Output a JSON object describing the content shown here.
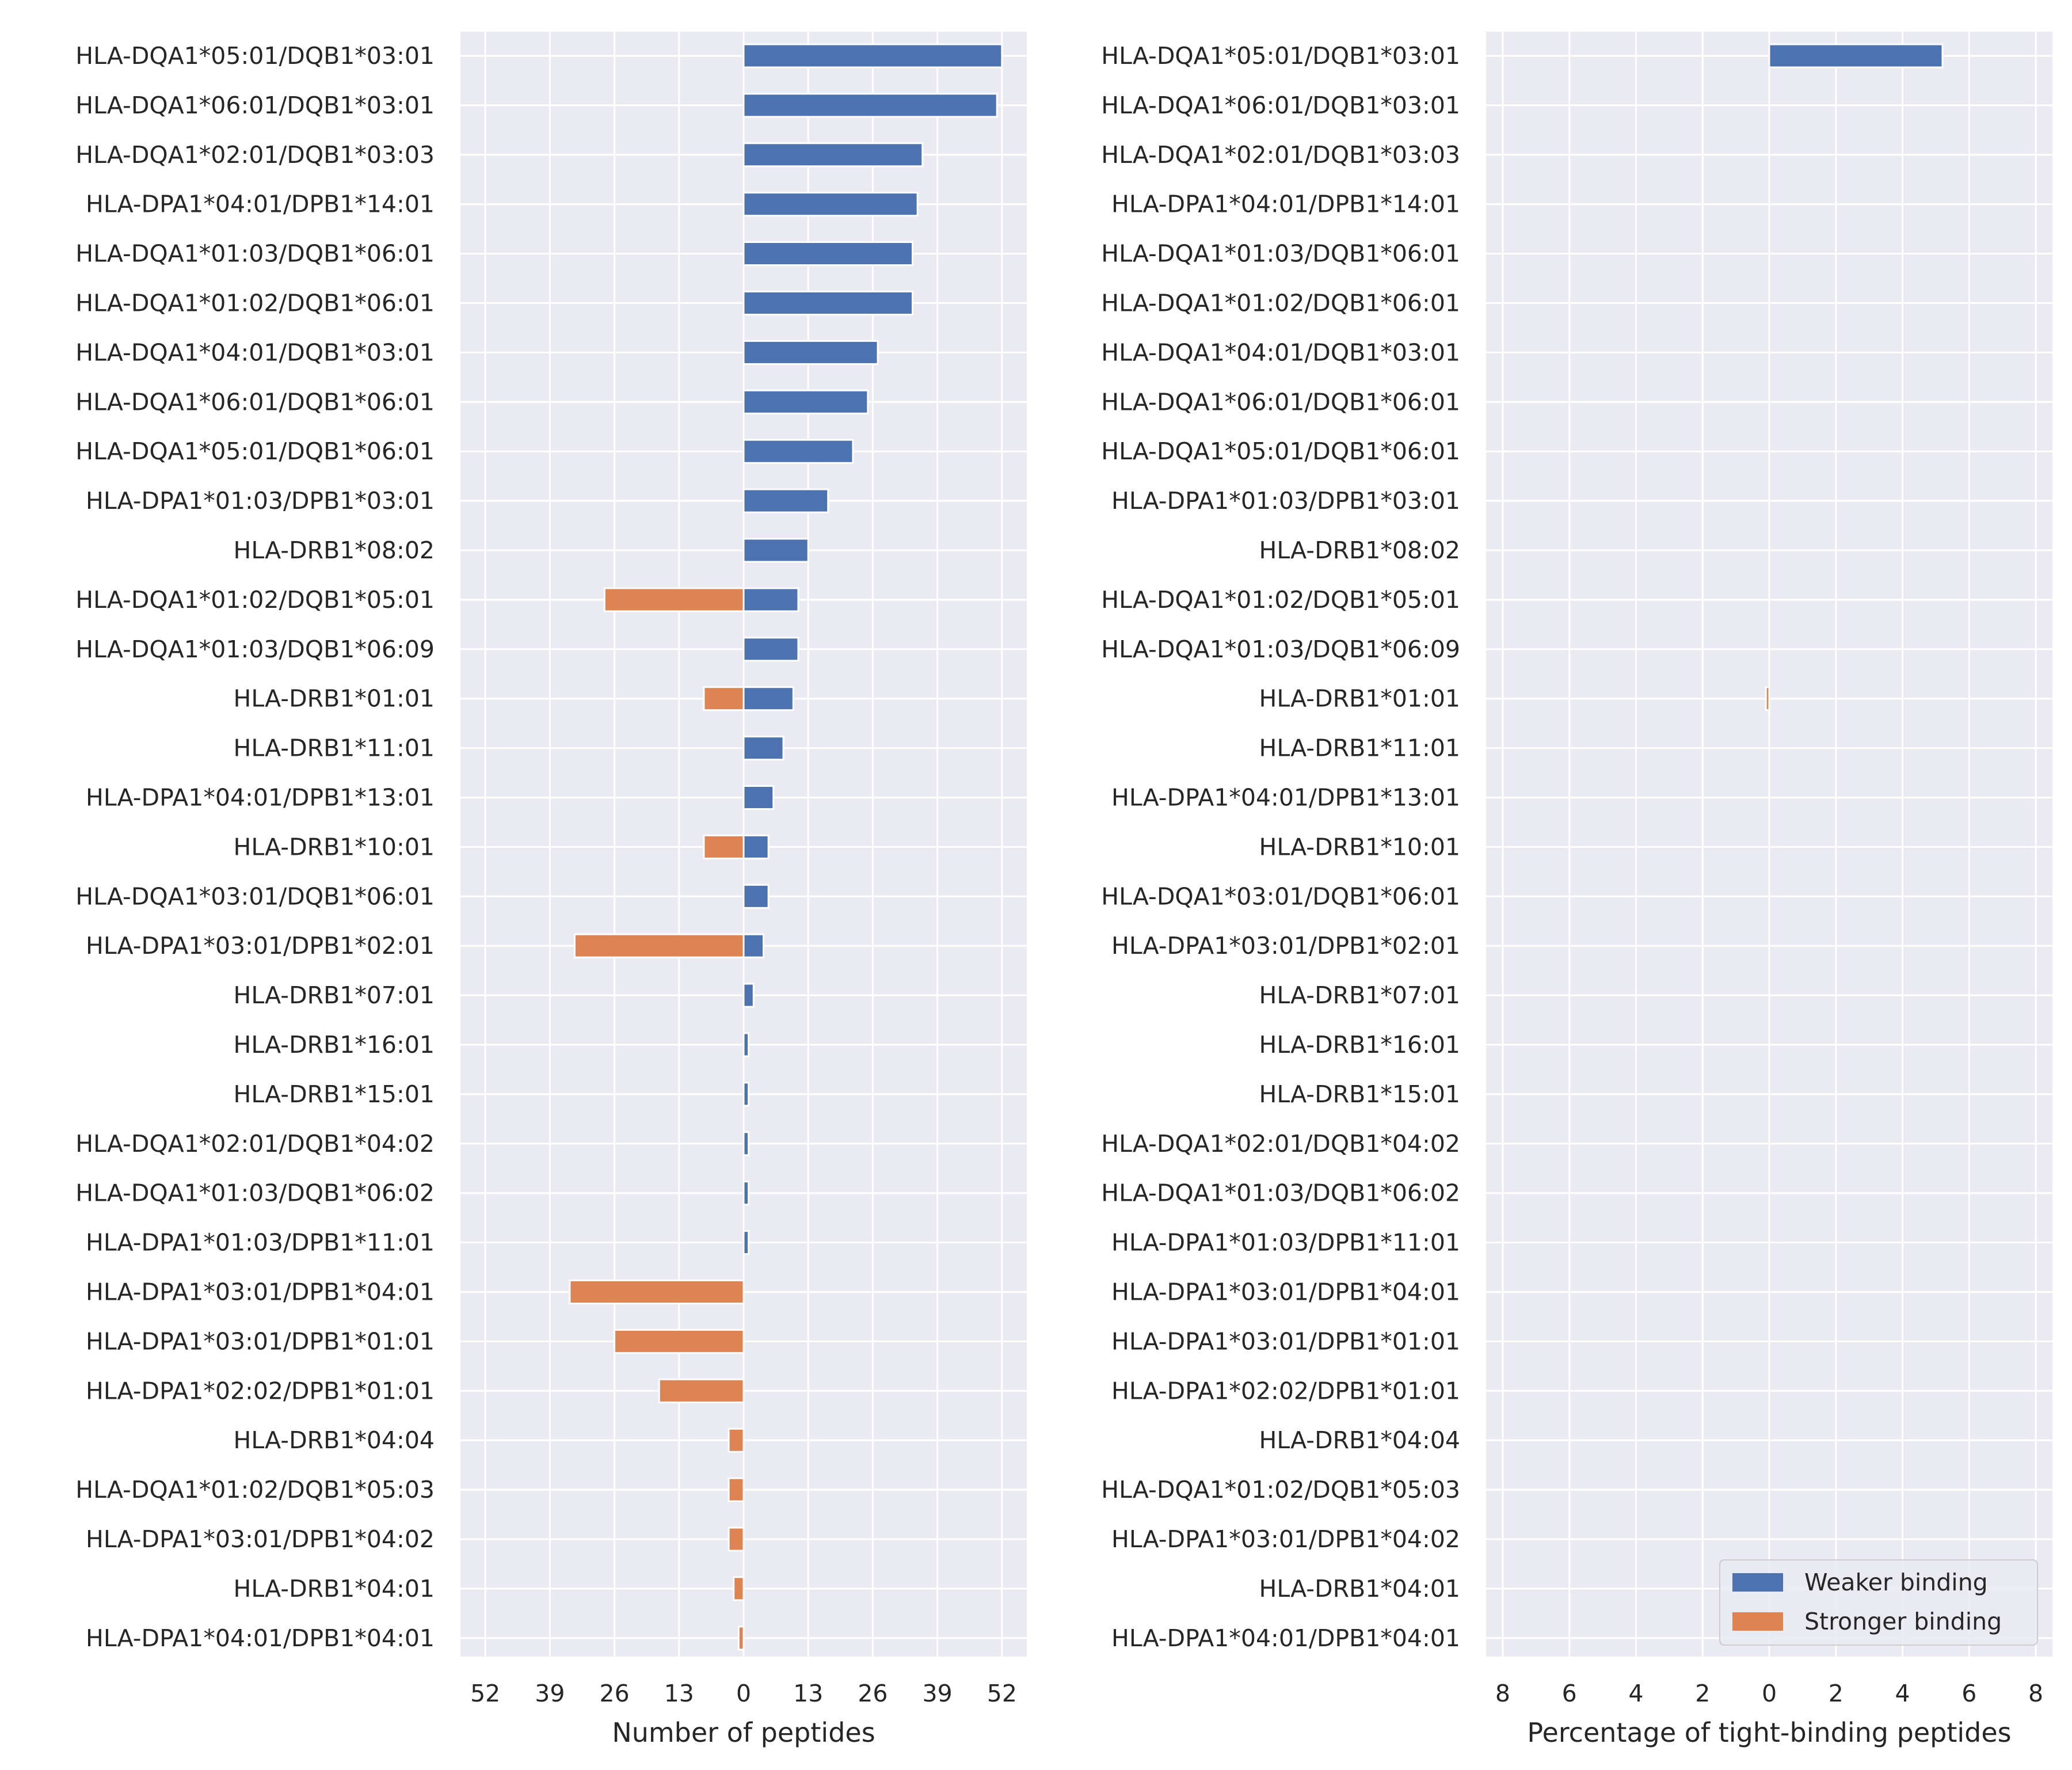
{
  "colors": {
    "panel_background": "#EAEAF2",
    "grid": "#FFFFFF",
    "weaker": "#4C72B0",
    "stronger": "#DD8452",
    "text": "#262626"
  },
  "legend": {
    "weaker_label": "Weaker binding",
    "stronger_label": "Stronger binding",
    "placement": "lower right of right panel"
  },
  "chart_data": [
    {
      "type": "bar",
      "orientation": "horizontal-diverging",
      "title": "",
      "xlabel": "Number of peptides",
      "ylabel": "",
      "xlim": [
        -57,
        57
      ],
      "xticks": [
        -52,
        -39,
        -26,
        -13,
        0,
        13,
        26,
        39,
        52
      ],
      "xtick_labels": [
        "52",
        "39",
        "26",
        "13",
        "0",
        "13",
        "26",
        "39",
        "52"
      ],
      "grid": true,
      "categories": [
        "HLA-DQA1*05:01/DQB1*03:01",
        "HLA-DQA1*06:01/DQB1*03:01",
        "HLA-DQA1*02:01/DQB1*03:03",
        "HLA-DPA1*04:01/DPB1*14:01",
        "HLA-DQA1*01:03/DQB1*06:01",
        "HLA-DQA1*01:02/DQB1*06:01",
        "HLA-DQA1*04:01/DQB1*03:01",
        "HLA-DQA1*06:01/DQB1*06:01",
        "HLA-DQA1*05:01/DQB1*06:01",
        "HLA-DPA1*01:03/DPB1*03:01",
        "HLA-DRB1*08:02",
        "HLA-DQA1*01:02/DQB1*05:01",
        "HLA-DQA1*01:03/DQB1*06:09",
        "HLA-DRB1*01:01",
        "HLA-DRB1*11:01",
        "HLA-DPA1*04:01/DPB1*13:01",
        "HLA-DRB1*10:01",
        "HLA-DQA1*03:01/DQB1*06:01",
        "HLA-DPA1*03:01/DPB1*02:01",
        "HLA-DRB1*07:01",
        "HLA-DRB1*16:01",
        "HLA-DRB1*15:01",
        "HLA-DQA1*02:01/DQB1*04:02",
        "HLA-DQA1*01:03/DQB1*06:02",
        "HLA-DPA1*01:03/DPB1*11:01",
        "HLA-DPA1*03:01/DPB1*04:01",
        "HLA-DPA1*03:01/DPB1*01:01",
        "HLA-DPA1*02:02/DPB1*01:01",
        "HLA-DRB1*04:04",
        "HLA-DQA1*01:02/DQB1*05:03",
        "HLA-DPA1*03:01/DPB1*04:02",
        "HLA-DRB1*04:01",
        "HLA-DPA1*04:01/DPB1*04:01"
      ],
      "series": [
        {
          "name": "Weaker binding",
          "values": [
            52,
            51,
            36,
            35,
            34,
            34,
            27,
            25,
            22,
            17,
            13,
            11,
            11,
            10,
            8,
            6,
            5,
            5,
            4,
            2,
            1,
            1,
            1,
            1,
            1,
            0,
            0,
            0,
            0,
            0,
            0,
            0,
            0
          ]
        },
        {
          "name": "Stronger binding",
          "values": [
            0,
            0,
            0,
            0,
            0,
            0,
            0,
            0,
            0,
            0,
            0,
            28,
            0,
            8,
            0,
            0,
            8,
            0,
            34,
            0,
            0,
            0,
            0,
            0,
            0,
            35,
            26,
            17,
            3,
            3,
            3,
            2,
            1
          ]
        }
      ]
    },
    {
      "type": "bar",
      "orientation": "horizontal-diverging",
      "title": "",
      "xlabel": "Percentage of tight-binding peptides",
      "ylabel": "",
      "xlim": [
        -8.5,
        8.5
      ],
      "xticks": [
        -8,
        -6,
        -4,
        -2,
        0,
        2,
        4,
        6,
        8
      ],
      "xtick_labels": [
        "8",
        "6",
        "4",
        "2",
        "0",
        "2",
        "4",
        "6",
        "8"
      ],
      "grid": true,
      "legend": "lower right",
      "categories": [
        "HLA-DQA1*05:01/DQB1*03:01",
        "HLA-DQA1*06:01/DQB1*03:01",
        "HLA-DQA1*02:01/DQB1*03:03",
        "HLA-DPA1*04:01/DPB1*14:01",
        "HLA-DQA1*01:03/DQB1*06:01",
        "HLA-DQA1*01:02/DQB1*06:01",
        "HLA-DQA1*04:01/DQB1*03:01",
        "HLA-DQA1*06:01/DQB1*06:01",
        "HLA-DQA1*05:01/DQB1*06:01",
        "HLA-DPA1*01:03/DPB1*03:01",
        "HLA-DRB1*08:02",
        "HLA-DQA1*01:02/DQB1*05:01",
        "HLA-DQA1*01:03/DQB1*06:09",
        "HLA-DRB1*01:01",
        "HLA-DRB1*11:01",
        "HLA-DPA1*04:01/DPB1*13:01",
        "HLA-DRB1*10:01",
        "HLA-DQA1*03:01/DQB1*06:01",
        "HLA-DPA1*03:01/DPB1*02:01",
        "HLA-DRB1*07:01",
        "HLA-DRB1*16:01",
        "HLA-DRB1*15:01",
        "HLA-DQA1*02:01/DQB1*04:02",
        "HLA-DQA1*01:03/DQB1*06:02",
        "HLA-DPA1*01:03/DPB1*11:01",
        "HLA-DPA1*03:01/DPB1*04:01",
        "HLA-DPA1*03:01/DPB1*01:01",
        "HLA-DPA1*02:02/DPB1*01:01",
        "HLA-DRB1*04:04",
        "HLA-DQA1*01:02/DQB1*05:03",
        "HLA-DPA1*03:01/DPB1*04:02",
        "HLA-DRB1*04:01",
        "HLA-DPA1*04:01/DPB1*04:01"
      ],
      "series": [
        {
          "name": "Weaker binding",
          "values": [
            5.2,
            0,
            0,
            0,
            0,
            0,
            0,
            0,
            0,
            0,
            0,
            0,
            0,
            0,
            0,
            0,
            0,
            0,
            0,
            0,
            0,
            0,
            0,
            0,
            0,
            0,
            0,
            0,
            0,
            0,
            0,
            0,
            0
          ]
        },
        {
          "name": "Stronger binding",
          "values": [
            0,
            0,
            0,
            0,
            0,
            0,
            0,
            0,
            0,
            0,
            0,
            0,
            0,
            0.1,
            0,
            0,
            0,
            0,
            0,
            0,
            0,
            0,
            0,
            0,
            0,
            0,
            0,
            0,
            0,
            0,
            0,
            0,
            0
          ]
        }
      ]
    }
  ]
}
